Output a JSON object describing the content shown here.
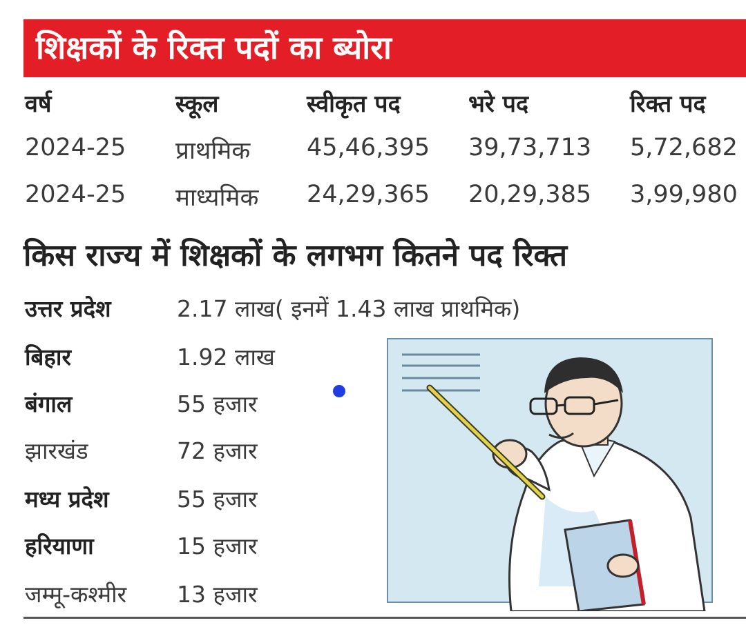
{
  "title": "शिक्षकों के रिक्त पदों का ब्योरा",
  "table": {
    "headers": [
      "वर्ष",
      "स्कूल",
      "स्वीकृत पद",
      "भरे पद",
      "रिक्त पद"
    ],
    "rows": [
      [
        "2024-25",
        "प्राथमिक",
        "45,46,395",
        "39,73,713",
        "5,72,682"
      ],
      [
        "2024-25",
        "माध्यमिक",
        "24,29,365",
        "20,29,385",
        "3,99,980"
      ]
    ]
  },
  "subtitle": "किस राज्य में शिक्षकों के लगभग कितने पद रिक्त",
  "states": [
    {
      "name": "उत्तर प्रदेश",
      "value": "2.17 लाख( इनमें 1.43 लाख प्राथमिक)"
    },
    {
      "name": "बिहार",
      "value": "1.92 लाख"
    },
    {
      "name": "बंगाल",
      "value": "55 हजार"
    },
    {
      "name": "झारखंड",
      "value": "72 हजार"
    },
    {
      "name": "मध्य प्रदेश",
      "value": "55 हजार"
    },
    {
      "name": "हरियाणा",
      "value": "15 हजार"
    },
    {
      "name": "जम्मू-कश्मीर",
      "value": "13 हजार"
    }
  ],
  "colors": {
    "banner": "#e41e26",
    "marker": "#1f3de0"
  },
  "illustration": "teacher-with-pointer-illustration"
}
